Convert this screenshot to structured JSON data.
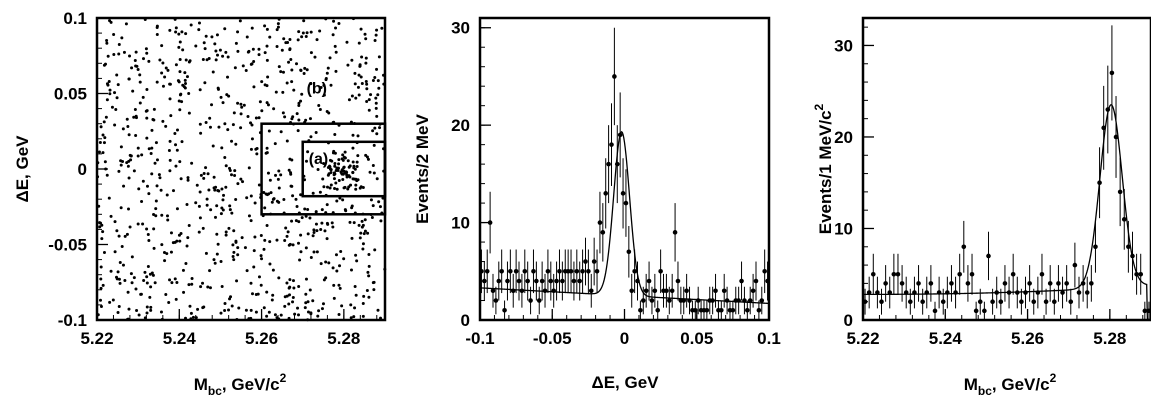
{
  "chart_data": [
    {
      "type": "scatter",
      "xlabel_main": "M",
      "xlabel_sub": "bc",
      "xlabel_rest": ", GeV/c",
      "xlabel_sup": "2",
      "ylabel": "ΔE, GeV",
      "xlim": [
        5.22,
        5.29
      ],
      "ylim": [
        -0.1,
        0.1
      ],
      "xticks": [
        "5.22",
        "5.24",
        "5.26",
        "5.28"
      ],
      "yticks": [
        "-0.1",
        "-0.05",
        "0",
        "0.05",
        "0.1"
      ],
      "xtick_values": [
        5.22,
        5.24,
        5.26,
        5.28
      ],
      "ytick_values": [
        -0.1,
        -0.05,
        0,
        0.05,
        0.1
      ],
      "background_points": 900,
      "signal_cluster_points": 70,
      "signal_center": [
        5.28,
        0.0
      ],
      "regions": [
        {
          "label": "(a)",
          "x": [
            5.27,
            5.29
          ],
          "y": [
            -0.018,
            0.018
          ]
        },
        {
          "label": "(b)",
          "x": [
            5.26,
            5.29
          ],
          "y": [
            -0.03,
            0.03
          ]
        }
      ]
    },
    {
      "type": "scatter",
      "xlabel": "ΔE, GeV",
      "ylabel": "Events/2 MeV",
      "xlim": [
        -0.1,
        0.1
      ],
      "ylim": [
        0,
        31
      ],
      "xticks": [
        "-0.1",
        "-0.05",
        "0",
        "0.05",
        "0.1"
      ],
      "yticks": [
        "0",
        "10",
        "20",
        "30"
      ],
      "xtick_values": [
        -0.1,
        -0.05,
        0,
        0.05,
        0.1
      ],
      "ytick_values": [
        0,
        10,
        20,
        30
      ],
      "x": [
        -0.099,
        -0.097,
        -0.095,
        -0.093,
        -0.091,
        -0.089,
        -0.087,
        -0.085,
        -0.083,
        -0.081,
        -0.079,
        -0.077,
        -0.075,
        -0.073,
        -0.071,
        -0.069,
        -0.067,
        -0.065,
        -0.063,
        -0.061,
        -0.059,
        -0.057,
        -0.055,
        -0.053,
        -0.051,
        -0.049,
        -0.047,
        -0.045,
        -0.043,
        -0.041,
        -0.039,
        -0.037,
        -0.035,
        -0.033,
        -0.031,
        -0.029,
        -0.027,
        -0.025,
        -0.023,
        -0.021,
        -0.019,
        -0.017,
        -0.015,
        -0.013,
        -0.011,
        -0.009,
        -0.007,
        -0.005,
        -0.003,
        -0.001,
        0.001,
        0.003,
        0.005,
        0.007,
        0.009,
        0.011,
        0.013,
        0.015,
        0.017,
        0.019,
        0.021,
        0.023,
        0.025,
        0.027,
        0.029,
        0.031,
        0.033,
        0.035,
        0.037,
        0.039,
        0.041,
        0.043,
        0.045,
        0.047,
        0.049,
        0.051,
        0.053,
        0.055,
        0.057,
        0.059,
        0.061,
        0.063,
        0.065,
        0.067,
        0.069,
        0.071,
        0.073,
        0.075,
        0.077,
        0.079,
        0.081,
        0.083,
        0.085,
        0.087,
        0.089,
        0.091,
        0.093,
        0.095,
        0.097,
        0.099
      ],
      "y": [
        5,
        4,
        5,
        10,
        3,
        2,
        4,
        5,
        1,
        4,
        5,
        3,
        5,
        4,
        3,
        5,
        4,
        2,
        5,
        4,
        2,
        4,
        3,
        5,
        4,
        3,
        4,
        5,
        4,
        5,
        5,
        5,
        4,
        5,
        4,
        5,
        6,
        5,
        3,
        6,
        5,
        10,
        9,
        13,
        16,
        18,
        25,
        16,
        19,
        13,
        12,
        7,
        3,
        5,
        4,
        1,
        2,
        3,
        4,
        2,
        3,
        1,
        5,
        3,
        3,
        2,
        3,
        9,
        4,
        2,
        2,
        3,
        2,
        1,
        1,
        2,
        1,
        1,
        1,
        2,
        2,
        3,
        1,
        1,
        3,
        2,
        1,
        1,
        2,
        2,
        4,
        2,
        1,
        2,
        3,
        4,
        1,
        2,
        5,
        4
      ],
      "fit_curve": {
        "gauss_mean": -0.002,
        "gauss_sigma": 0.0055,
        "gauss_amp": 16.8,
        "bkg_at_min": 3.3,
        "bkg_at_max": 1.7
      }
    },
    {
      "type": "scatter",
      "xlabel_main": "M",
      "xlabel_sub": "bc",
      "xlabel_rest": ", GeV/c",
      "xlabel_sup": "2",
      "ylabel_main": "Events/1 MeV/c",
      "ylabel_sup": "2",
      "xlim": [
        5.22,
        5.29
      ],
      "ylim": [
        0,
        33
      ],
      "xticks": [
        "5.22",
        "5.24",
        "5.26",
        "5.28"
      ],
      "yticks": [
        "0",
        "10",
        "20",
        "30"
      ],
      "xtick_values": [
        5.22,
        5.24,
        5.26,
        5.28
      ],
      "ytick_values": [
        0,
        10,
        20,
        30
      ],
      "x": [
        5.2205,
        5.2215,
        5.2225,
        5.2235,
        5.2245,
        5.2255,
        5.2265,
        5.2275,
        5.2285,
        5.2295,
        5.2305,
        5.2315,
        5.2325,
        5.2335,
        5.2345,
        5.2355,
        5.2365,
        5.2375,
        5.2385,
        5.2395,
        5.2405,
        5.2415,
        5.2425,
        5.2435,
        5.2445,
        5.2455,
        5.2465,
        5.2475,
        5.2485,
        5.2495,
        5.2505,
        5.2515,
        5.2525,
        5.2535,
        5.2545,
        5.2555,
        5.2565,
        5.2575,
        5.2585,
        5.2595,
        5.2605,
        5.2615,
        5.2625,
        5.2635,
        5.2645,
        5.2655,
        5.2665,
        5.2675,
        5.2685,
        5.2695,
        5.2705,
        5.2715,
        5.2725,
        5.2735,
        5.2745,
        5.2755,
        5.2765,
        5.2775,
        5.2785,
        5.2795,
        5.2805,
        5.2815,
        5.2825,
        5.2835,
        5.2845,
        5.2855,
        5.2865,
        5.2875,
        5.2885,
        5.2895
      ],
      "y": [
        2,
        3,
        5,
        3,
        2,
        4,
        3,
        5,
        5,
        4,
        3,
        2,
        3,
        4,
        2,
        3,
        4,
        1,
        3,
        2,
        3,
        4,
        3,
        5,
        8,
        4,
        5,
        1,
        2,
        1,
        7,
        2,
        3,
        2,
        4,
        3,
        5,
        3,
        2,
        3,
        4,
        2,
        3,
        5,
        2,
        4,
        2,
        4,
        3,
        4,
        2,
        6,
        3,
        4,
        3,
        4,
        8,
        15,
        21,
        23,
        27,
        20,
        14,
        11,
        8,
        7,
        5,
        5,
        1,
        1
      ],
      "fit_curve": {
        "gauss_mean": 5.2803,
        "gauss_sigma": 0.0027,
        "gauss_amp": 20.0,
        "bkg_at_min": 2.8,
        "bkg_at_max": 3.8,
        "endpoint": 5.289
      }
    }
  ]
}
